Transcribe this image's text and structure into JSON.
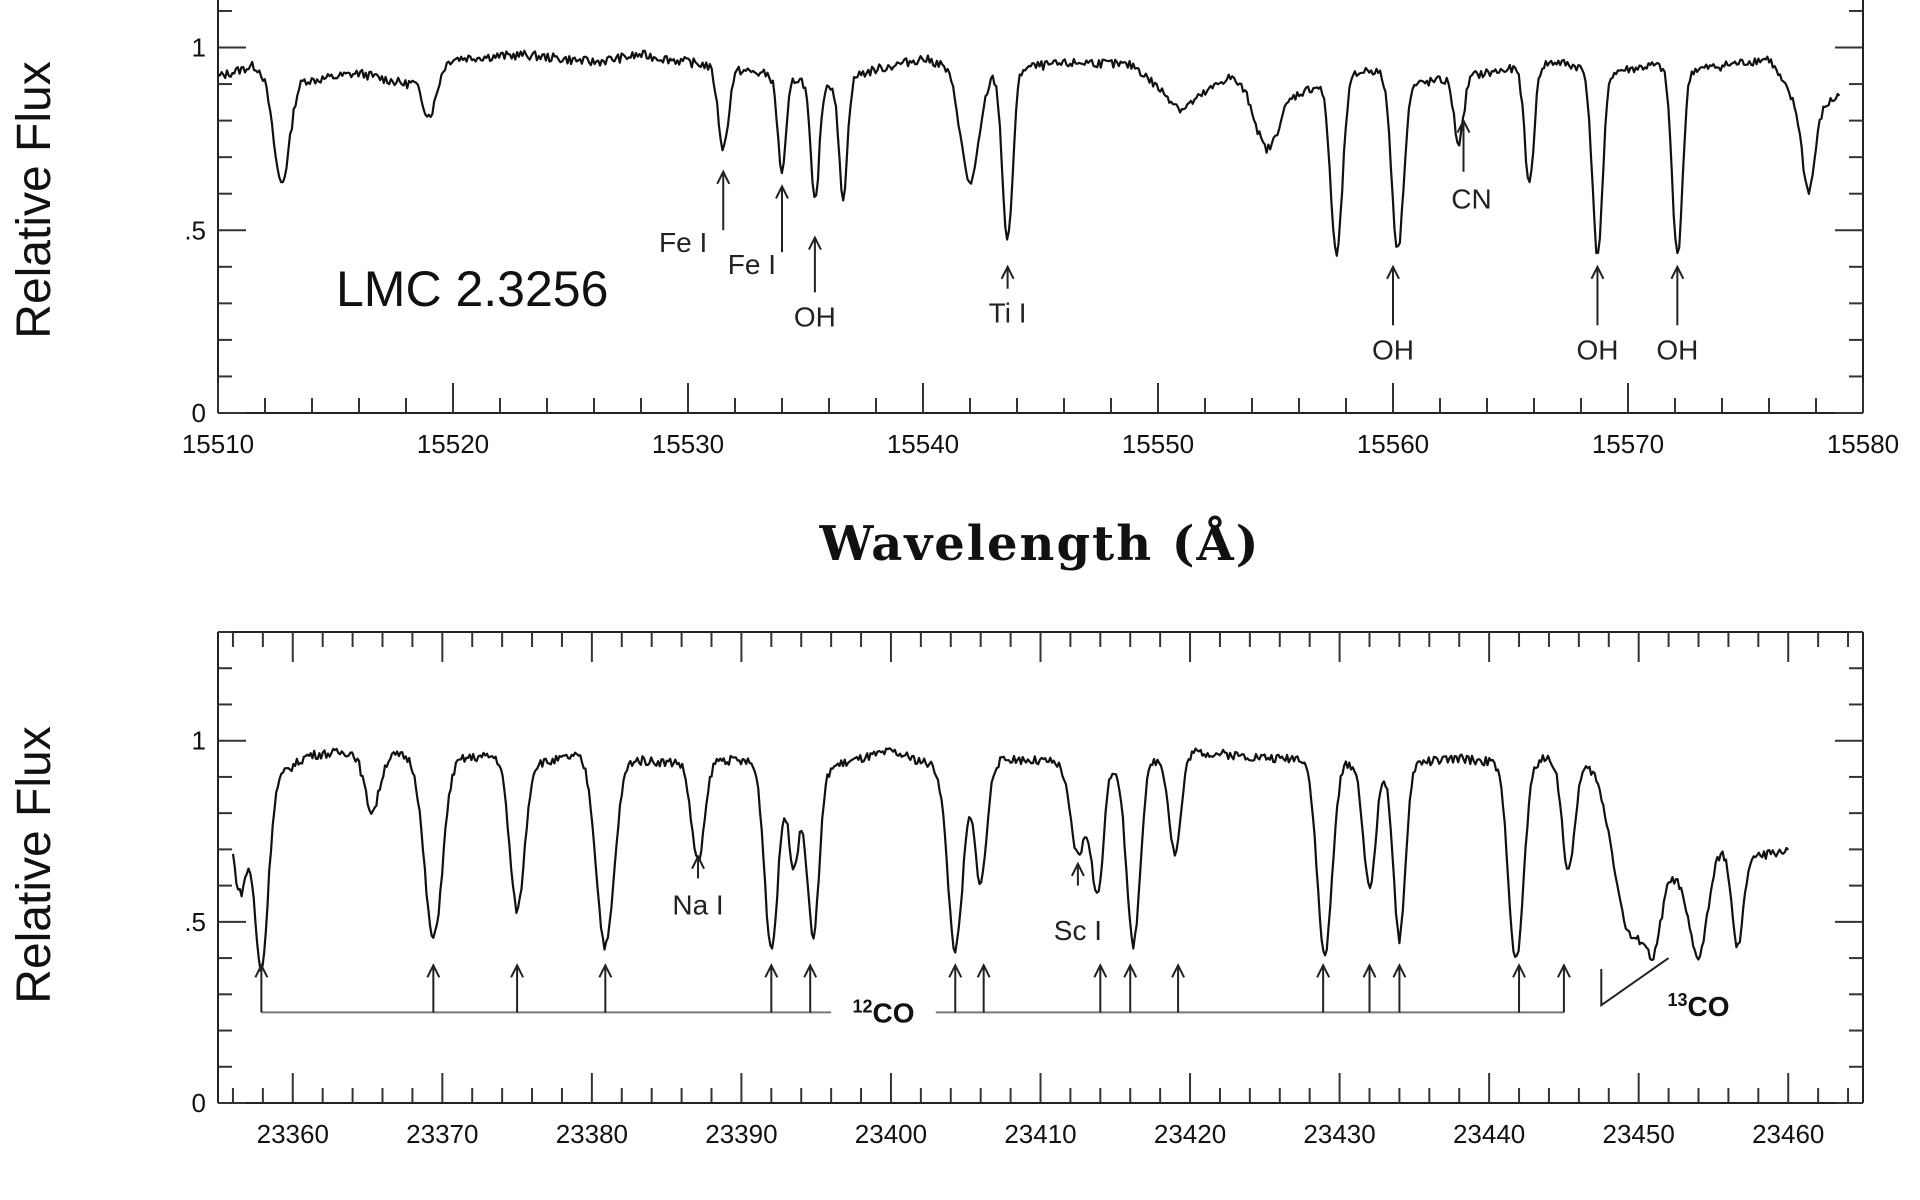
{
  "xlabel": "Wavelength (Å)",
  "chart_data": [
    {
      "type": "line",
      "star_label": "LMC 2.3256",
      "ylabel": "Relative Flux",
      "xlim": [
        15510,
        15580
      ],
      "ylim": [
        0,
        1.13
      ],
      "x_ticks": [
        15510,
        15520,
        15530,
        15540,
        15550,
        15560,
        15570,
        15580
      ],
      "x_tick_labels": [
        "15510",
        "15520",
        "15530",
        "15540",
        "15550",
        "15560",
        "15570",
        "15580"
      ],
      "y_ticks": [
        0,
        0.5,
        1
      ],
      "y_tick_labels": [
        "0",
        ".5",
        "1"
      ],
      "spectrum": {
        "continuum": [
          [
            15510,
            0.92
          ],
          [
            15511.5,
            0.95
          ],
          [
            15514,
            0.91
          ],
          [
            15516,
            0.93
          ],
          [
            15518,
            0.9
          ],
          [
            15520,
            0.97
          ],
          [
            15523,
            0.98
          ],
          [
            15526,
            0.96
          ],
          [
            15528,
            0.98
          ],
          [
            15530,
            0.96
          ],
          [
            15533,
            0.93
          ],
          [
            15536,
            0.9
          ],
          [
            15538,
            0.94
          ],
          [
            15540,
            0.97
          ],
          [
            15542,
            0.93
          ],
          [
            15545,
            0.95
          ],
          [
            15547,
            0.96
          ],
          [
            15549,
            0.95
          ],
          [
            15551,
            0.83
          ],
          [
            15553,
            0.92
          ],
          [
            15555,
            0.85
          ],
          [
            15557,
            0.9
          ],
          [
            15559,
            0.94
          ],
          [
            15561,
            0.9
          ],
          [
            15563,
            0.92
          ],
          [
            15565,
            0.94
          ],
          [
            15567,
            0.96
          ],
          [
            15569,
            0.93
          ],
          [
            15571,
            0.95
          ],
          [
            15573,
            0.94
          ],
          [
            15576,
            0.97
          ],
          [
            15577.5,
            0.8
          ],
          [
            15579,
            0.87
          ]
        ],
        "lines": [
          [
            15512.7,
            0.3,
            0.35
          ],
          [
            15519.0,
            0.12,
            0.3
          ],
          [
            15531.5,
            0.22,
            0.22
          ],
          [
            15534.0,
            0.26,
            0.18
          ],
          [
            15535.4,
            0.33,
            0.18
          ],
          [
            15536.6,
            0.32,
            0.18
          ],
          [
            15542.0,
            0.3,
            0.4
          ],
          [
            15543.6,
            0.47,
            0.22
          ],
          [
            15554.6,
            0.14,
            0.45
          ],
          [
            15557.6,
            0.48,
            0.25
          ],
          [
            15560.2,
            0.47,
            0.25
          ],
          [
            15562.8,
            0.18,
            0.2
          ],
          [
            15565.8,
            0.32,
            0.2
          ],
          [
            15568.7,
            0.5,
            0.22
          ],
          [
            15572.1,
            0.51,
            0.22
          ],
          [
            15577.7,
            0.2,
            0.25
          ]
        ]
      },
      "annotations": [
        {
          "label": "Fe I",
          "wavelength": 15531.5,
          "arrow_from": 0.5,
          "arrow_to": 0.66
        },
        {
          "label": "Fe I",
          "wavelength": 15534.0,
          "arrow_from": 0.44,
          "arrow_to": 0.62
        },
        {
          "label": "OH",
          "wavelength": 15535.4,
          "arrow_from": 0.33,
          "arrow_to": 0.48
        },
        {
          "label": "Ti I",
          "wavelength": 15543.6,
          "arrow_from": 0.34,
          "arrow_to": 0.4
        },
        {
          "label": "OH",
          "wavelength": 15560.0,
          "arrow_from": 0.24,
          "arrow_to": 0.4
        },
        {
          "label": "CN",
          "wavelength": 15563.0,
          "arrow_from": 0.66,
          "arrow_to": 0.8
        },
        {
          "label": "OH",
          "wavelength": 15568.7,
          "arrow_from": 0.24,
          "arrow_to": 0.4
        },
        {
          "label": "OH",
          "wavelength": 15572.1,
          "arrow_from": 0.24,
          "arrow_to": 0.4
        }
      ]
    },
    {
      "type": "line",
      "ylabel": "Relative Flux",
      "xlim": [
        23355,
        23465
      ],
      "ylim": [
        0,
        1.3
      ],
      "x_ticks": [
        23360,
        23370,
        23380,
        23390,
        23400,
        23410,
        23420,
        23430,
        23440,
        23450,
        23460
      ],
      "x_tick_labels": [
        "23360",
        "23370",
        "23380",
        "23390",
        "23400",
        "23410",
        "23420",
        "23430",
        "23440",
        "23450",
        "23460"
      ],
      "y_ticks": [
        0,
        0.5,
        1
      ],
      "y_tick_labels": [
        "0",
        ".5",
        "1"
      ],
      "spectrum": {
        "continuum": [
          [
            23356,
            0.82
          ],
          [
            23359,
            0.9
          ],
          [
            23361,
            0.96
          ],
          [
            23364,
            0.97
          ],
          [
            23367,
            0.96
          ],
          [
            23371,
            0.95
          ],
          [
            23374,
            0.96
          ],
          [
            23377,
            0.94
          ],
          [
            23379,
            0.96
          ],
          [
            23382,
            0.95
          ],
          [
            23385,
            0.94
          ],
          [
            23388,
            0.95
          ],
          [
            23391,
            0.94
          ],
          [
            23394,
            0.9
          ],
          [
            23397,
            0.94
          ],
          [
            23400,
            0.97
          ],
          [
            23403,
            0.93
          ],
          [
            23405,
            0.92
          ],
          [
            23408,
            0.95
          ],
          [
            23411,
            0.94
          ],
          [
            23414,
            0.93
          ],
          [
            23417,
            0.94
          ],
          [
            23420,
            0.97
          ],
          [
            23423,
            0.96
          ],
          [
            23426,
            0.95
          ],
          [
            23429,
            0.96
          ],
          [
            23432,
            0.92
          ],
          [
            23435,
            0.94
          ],
          [
            23438,
            0.95
          ],
          [
            23441,
            0.94
          ],
          [
            23444,
            0.95
          ],
          [
            23447,
            0.92
          ],
          [
            23450,
            0.66
          ],
          [
            23453,
            0.62
          ],
          [
            23456,
            0.72
          ],
          [
            23458,
            0.68
          ],
          [
            23460,
            0.7
          ]
        ],
        "lines": [
          [
            23356.5,
            0.25,
            0.45
          ],
          [
            23357.9,
            0.5,
            0.45
          ],
          [
            23365.3,
            0.16,
            0.5
          ],
          [
            23369.4,
            0.5,
            0.6
          ],
          [
            23375.0,
            0.42,
            0.5
          ],
          [
            23380.9,
            0.52,
            0.6
          ],
          [
            23387.1,
            0.28,
            0.45
          ],
          [
            23392.0,
            0.5,
            0.45
          ],
          [
            23393.5,
            0.25,
            0.35
          ],
          [
            23394.8,
            0.45,
            0.4
          ],
          [
            23404.3,
            0.5,
            0.5
          ],
          [
            23406.0,
            0.32,
            0.4
          ],
          [
            23412.5,
            0.25,
            0.5
          ],
          [
            23413.8,
            0.35,
            0.4
          ],
          [
            23416.2,
            0.5,
            0.45
          ],
          [
            23419.0,
            0.27,
            0.4
          ],
          [
            23429.0,
            0.55,
            0.5
          ],
          [
            23432.0,
            0.33,
            0.4
          ],
          [
            23434.0,
            0.48,
            0.4
          ],
          [
            23441.8,
            0.55,
            0.5
          ],
          [
            23445.3,
            0.3,
            0.4
          ],
          [
            23449.3,
            0.25,
            0.9
          ],
          [
            23451.0,
            0.2,
            0.5
          ],
          [
            23454.0,
            0.25,
            0.6
          ],
          [
            23456.6,
            0.28,
            0.4
          ]
        ]
      },
      "annotations": [
        {
          "label": "Na I",
          "wavelength": 23387.1,
          "arrow_from": 0.62,
          "arrow_to": 0.68
        },
        {
          "label": "Sc I",
          "wavelength": 23412.5,
          "arrow_from": 0.6,
          "arrow_to": 0.66
        }
      ],
      "co12": {
        "label_main": "CO",
        "label_sup": "12",
        "arrow_wavelengths": [
          23357.9,
          23369.4,
          23375.0,
          23380.9,
          23392.0,
          23394.6,
          23404.3,
          23406.2,
          23414.0,
          23416.0,
          23419.2,
          23428.9,
          23432.0,
          23434.0,
          23442.0,
          23445.0
        ],
        "bracket_level": 0.25,
        "arrow_top": 0.38
      },
      "co13": {
        "label_main": "CO",
        "label_sup": "13"
      }
    }
  ]
}
